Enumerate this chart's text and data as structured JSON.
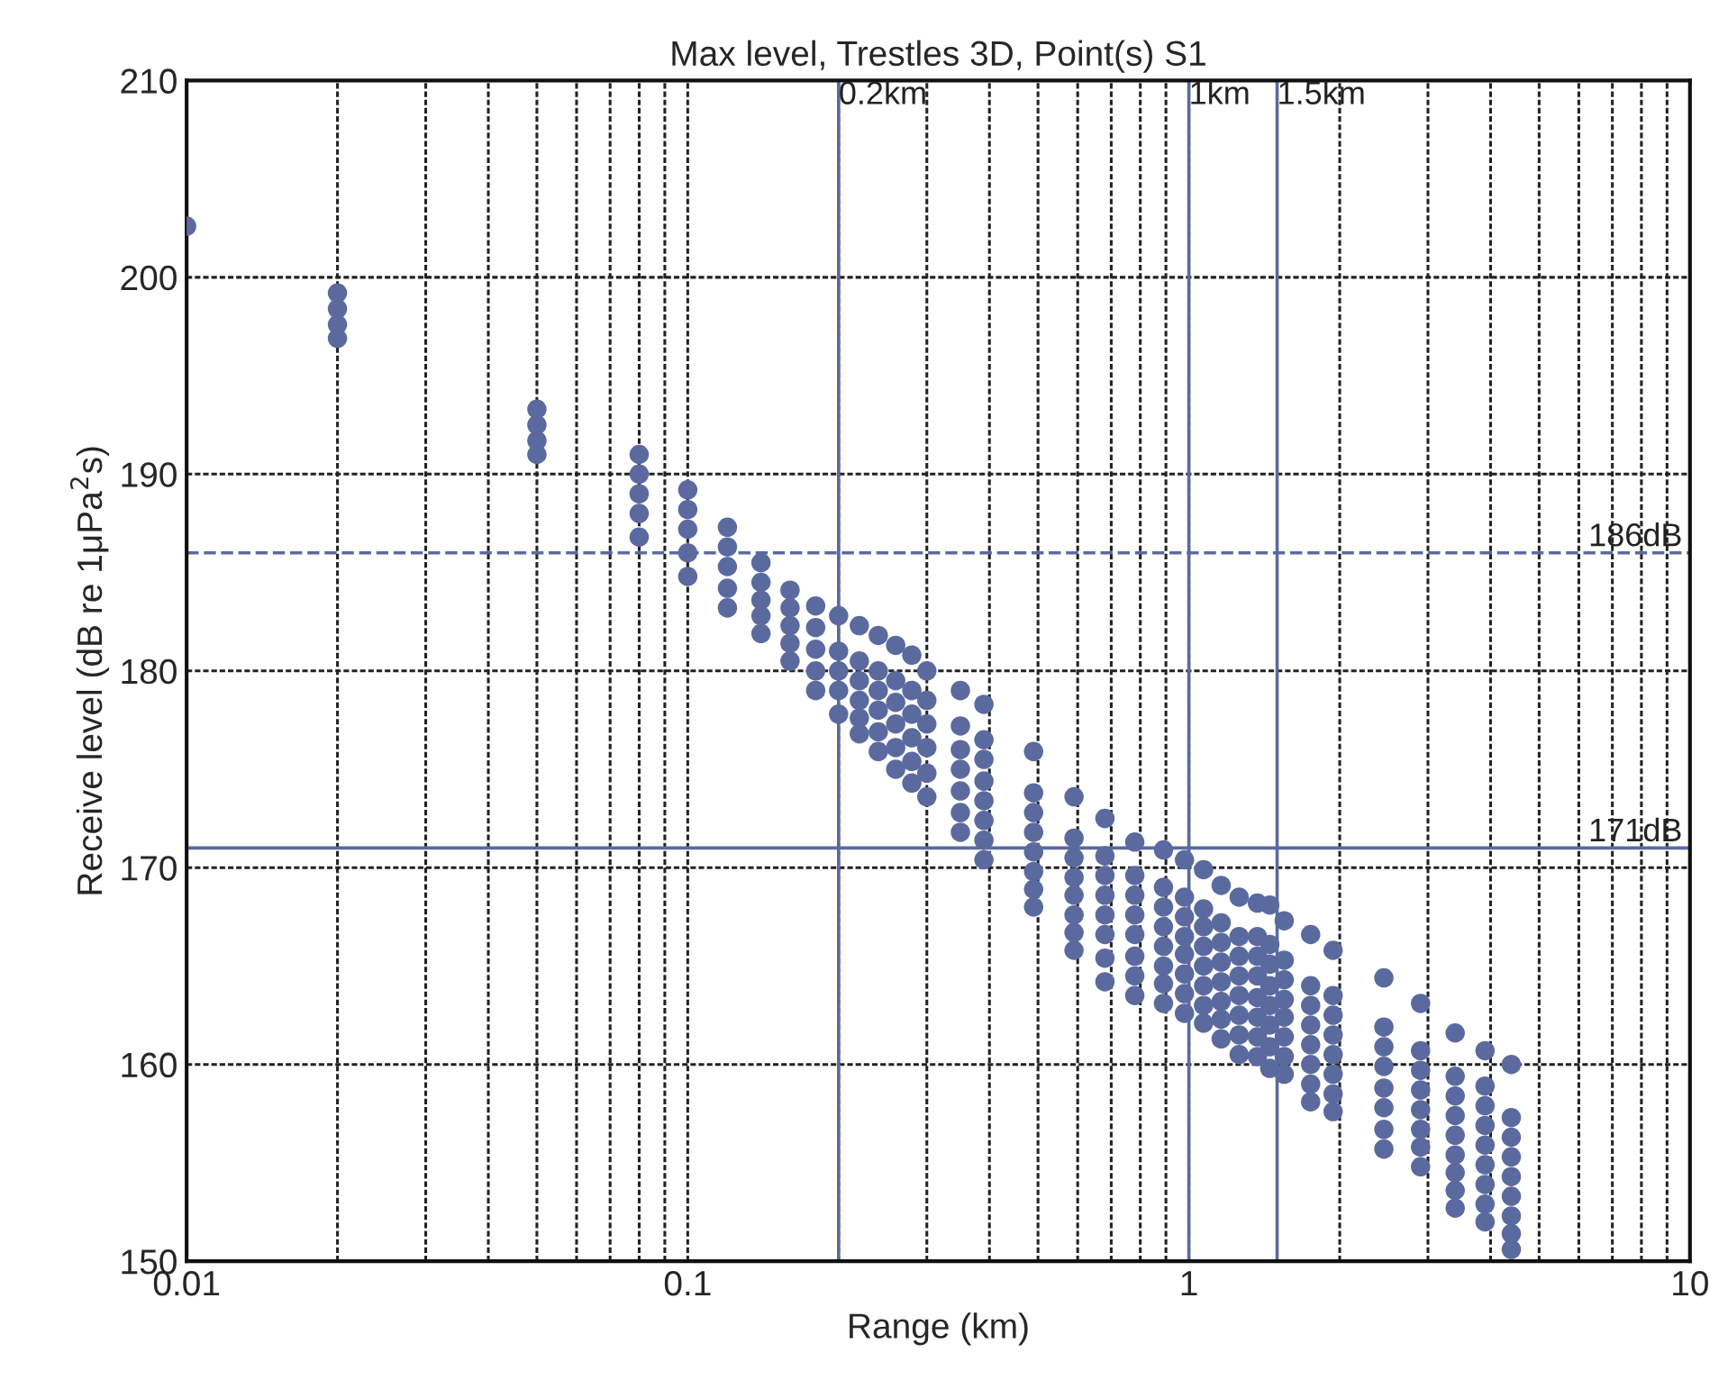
{
  "chart_data": {
    "type": "scatter",
    "title": "Max level, Trestles 3D, Point(s) S1",
    "xlabel": "Range (km)",
    "ylabel": "Receive level (dB re 1μPa$^{2}$s)",
    "log": "x",
    "xlim": [
      0.01,
      10
    ],
    "xticks": [
      0.01,
      0.1,
      1,
      10
    ],
    "ylim": [
      150,
      210
    ],
    "yticks": [
      150,
      160,
      170,
      180,
      190,
      200,
      210
    ],
    "grid": true,
    "marker": "circle",
    "legend": false,
    "series": [
      {
        "color": "#5b6a9e",
        "x": [
          0.01,
          0.02,
          0.02,
          0.02,
          0.02,
          0.05,
          0.05,
          0.05,
          0.05,
          0.08,
          0.08,
          0.08,
          0.08,
          0.08,
          0.1,
          0.1,
          0.1,
          0.1,
          0.1,
          0.12,
          0.12,
          0.12,
          0.12,
          0.12,
          0.14,
          0.14,
          0.14,
          0.14,
          0.14,
          0.16,
          0.16,
          0.16,
          0.16,
          0.16,
          0.18,
          0.18,
          0.18,
          0.18,
          0.18,
          0.2,
          0.2,
          0.2,
          0.2,
          0.2,
          0.22,
          0.22,
          0.22,
          0.22,
          0.22,
          0.22,
          0.24,
          0.24,
          0.24,
          0.24,
          0.24,
          0.24,
          0.26,
          0.26,
          0.26,
          0.26,
          0.26,
          0.26,
          0.28,
          0.28,
          0.28,
          0.28,
          0.28,
          0.28,
          0.3,
          0.3,
          0.3,
          0.3,
          0.3,
          0.3,
          0.35,
          0.35,
          0.35,
          0.35,
          0.35,
          0.35,
          0.35,
          0.39,
          0.39,
          0.39,
          0.39,
          0.39,
          0.39,
          0.39,
          0.39,
          0.49,
          0.49,
          0.49,
          0.49,
          0.49,
          0.49,
          0.49,
          0.49,
          0.59,
          0.59,
          0.59,
          0.59,
          0.59,
          0.59,
          0.59,
          0.59,
          0.68,
          0.68,
          0.68,
          0.68,
          0.68,
          0.68,
          0.68,
          0.68,
          0.78,
          0.78,
          0.78,
          0.78,
          0.78,
          0.78,
          0.78,
          0.78,
          0.89,
          0.89,
          0.89,
          0.89,
          0.89,
          0.89,
          0.89,
          0.89,
          0.98,
          0.98,
          0.98,
          0.98,
          0.98,
          0.98,
          0.98,
          0.98,
          1.07,
          1.07,
          1.07,
          1.07,
          1.07,
          1.07,
          1.07,
          1.07,
          1.16,
          1.16,
          1.16,
          1.16,
          1.16,
          1.16,
          1.16,
          1.16,
          1.26,
          1.26,
          1.26,
          1.26,
          1.26,
          1.26,
          1.26,
          1.26,
          1.37,
          1.37,
          1.37,
          1.37,
          1.37,
          1.37,
          1.37,
          1.37,
          1.45,
          1.45,
          1.45,
          1.45,
          1.45,
          1.45,
          1.45,
          1.45,
          1.55,
          1.55,
          1.55,
          1.55,
          1.55,
          1.55,
          1.55,
          1.55,
          1.75,
          1.75,
          1.75,
          1.75,
          1.75,
          1.75,
          1.75,
          1.75,
          1.94,
          1.94,
          1.94,
          1.94,
          1.94,
          1.94,
          1.94,
          1.94,
          2.45,
          2.45,
          2.45,
          2.45,
          2.45,
          2.45,
          2.45,
          2.45,
          2.9,
          2.9,
          2.9,
          2.9,
          2.9,
          2.9,
          2.9,
          2.9,
          3.4,
          3.4,
          3.4,
          3.4,
          3.4,
          3.4,
          3.4,
          3.4,
          3.4,
          3.9,
          3.9,
          3.9,
          3.9,
          3.9,
          3.9,
          3.9,
          3.9,
          3.9,
          4.4,
          4.4,
          4.4,
          4.4,
          4.4,
          4.4,
          4.4,
          4.4,
          4.4
        ],
        "values": [
          202.6,
          199.2,
          198.4,
          197.6,
          196.9,
          193.3,
          192.5,
          191.7,
          191.0,
          191.0,
          190.0,
          189.0,
          188.0,
          186.8,
          189.2,
          188.2,
          187.2,
          186.0,
          184.8,
          187.3,
          186.3,
          185.3,
          184.2,
          183.2,
          185.5,
          184.5,
          183.6,
          182.8,
          181.9,
          184.1,
          183.2,
          182.3,
          181.4,
          180.5,
          183.3,
          182.2,
          181.1,
          180.0,
          179.0,
          182.8,
          181.0,
          180.0,
          179.0,
          177.8,
          182.3,
          180.5,
          179.5,
          178.5,
          177.6,
          176.8,
          181.8,
          180.0,
          179.0,
          178.0,
          176.9,
          175.9,
          181.3,
          179.5,
          178.4,
          177.3,
          176.1,
          175.0,
          180.8,
          179.0,
          177.8,
          176.6,
          175.4,
          174.3,
          180.0,
          178.5,
          177.3,
          176.1,
          174.8,
          173.6,
          179.0,
          177.2,
          176.0,
          175.0,
          173.9,
          172.8,
          171.8,
          178.3,
          176.5,
          175.5,
          174.4,
          173.4,
          172.4,
          171.4,
          170.4,
          175.9,
          173.8,
          172.8,
          171.8,
          170.8,
          169.8,
          168.9,
          168.0,
          173.6,
          171.5,
          170.5,
          169.5,
          168.6,
          167.6,
          166.7,
          165.8,
          172.5,
          170.6,
          169.6,
          168.6,
          167.6,
          166.6,
          165.4,
          164.2,
          171.3,
          169.6,
          168.6,
          167.6,
          166.6,
          165.5,
          164.5,
          163.5,
          170.9,
          169.0,
          168.0,
          167.0,
          166.0,
          165.0,
          164.1,
          163.1,
          170.4,
          168.5,
          167.5,
          166.5,
          165.6,
          164.6,
          163.6,
          162.6,
          169.9,
          167.9,
          167.0,
          166.0,
          165.0,
          164.0,
          163.0,
          162.1,
          169.1,
          167.2,
          166.2,
          165.2,
          164.2,
          163.2,
          162.3,
          161.3,
          168.5,
          166.5,
          165.5,
          164.5,
          163.5,
          162.5,
          161.5,
          160.5,
          168.2,
          166.5,
          165.5,
          164.5,
          163.4,
          162.4,
          161.4,
          160.4,
          168.1,
          166.1,
          165.1,
          164.0,
          163.0,
          162.0,
          160.9,
          159.8,
          167.3,
          165.3,
          164.3,
          163.3,
          162.4,
          161.4,
          160.4,
          159.5,
          166.6,
          164.0,
          163.0,
          162.0,
          161.0,
          160.0,
          159.0,
          158.1,
          165.8,
          163.5,
          162.5,
          161.5,
          160.5,
          159.5,
          158.5,
          157.6,
          164.4,
          161.9,
          160.9,
          159.9,
          158.8,
          157.8,
          156.7,
          155.7,
          163.1,
          160.7,
          159.7,
          158.7,
          157.7,
          156.7,
          155.8,
          154.8,
          161.6,
          159.4,
          158.4,
          157.4,
          156.4,
          155.4,
          154.5,
          153.6,
          152.7,
          160.7,
          158.9,
          157.9,
          156.9,
          155.9,
          154.9,
          153.9,
          152.9,
          152.0,
          160.0,
          157.3,
          156.3,
          155.3,
          154.3,
          153.3,
          152.3,
          151.4,
          150.6
        ]
      }
    ],
    "ref_lines": [
      {
        "axis": "x",
        "value": 0.2,
        "label": "0.2km",
        "color": "#5a6aa0"
      },
      {
        "axis": "x",
        "value": 1,
        "label": "1km",
        "color": "#5a6aa0"
      },
      {
        "axis": "x",
        "value": 1.5,
        "label": "1.5km",
        "color": "#5a6aa0"
      },
      {
        "axis": "y",
        "value": 186,
        "label": "186dB",
        "color": "#5a6aa0",
        "line_style": "dashed"
      },
      {
        "axis": "y",
        "value": 171,
        "label": "171dB",
        "color": "#5a6aa0"
      }
    ]
  }
}
